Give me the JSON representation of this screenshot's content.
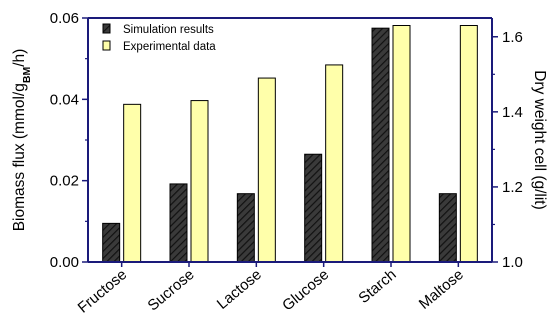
{
  "chart_data": {
    "type": "bar",
    "categories": [
      "Fructose",
      "Sucrose",
      "Lactose",
      "Glucose",
      "Starch",
      "Maltose"
    ],
    "series": [
      {
        "name": "Simulation results",
        "axis": "left",
        "values": [
          0.0095,
          0.0192,
          0.0168,
          0.0265,
          0.0575,
          0.0168
        ],
        "color": "#2b2b2b",
        "pattern": "diagonal-hatch"
      },
      {
        "name": "Experimental data",
        "axis": "right",
        "values": [
          1.42,
          1.43,
          1.49,
          1.525,
          1.63,
          1.63
        ],
        "color": "#ffffaa"
      }
    ],
    "ylabel_left_main": "Biomass flux (mmol/g",
    "ylabel_left_sub": "BM",
    "ylabel_left_tail": "/h)",
    "ylabel_right": "Dry weight cell (g/lit)",
    "ylim_left": [
      0,
      0.06
    ],
    "ylim_right": [
      1.0,
      1.65
    ],
    "yticks_left": [
      "0.00",
      "0.02",
      "0.04",
      "0.06"
    ],
    "yticks_right": [
      "1.0",
      "1.2",
      "1.4",
      "1.6"
    ],
    "legend_position": "top-left",
    "axis_color": "#1a1a7a",
    "grid": false
  }
}
